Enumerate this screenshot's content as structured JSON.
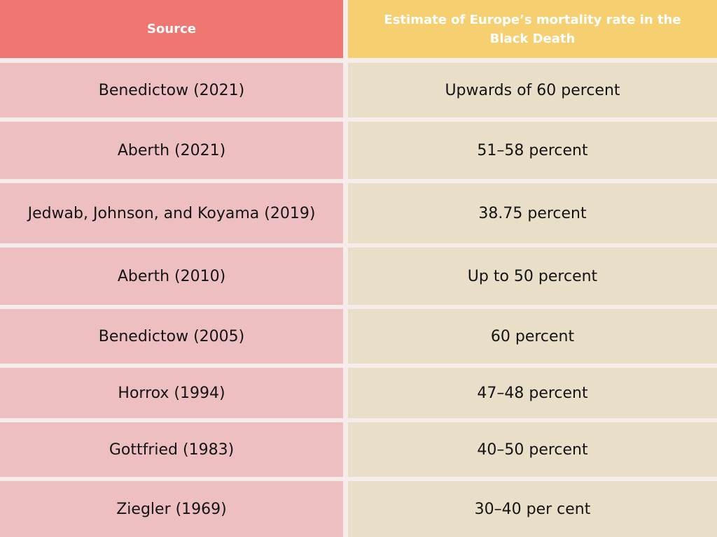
{
  "chart_data": {
    "type": "table",
    "columns": [
      "Source",
      "Estimate of Europe’s mortality rate in the Black Death"
    ],
    "rows": [
      [
        "Benedictow (2021)",
        "Upwards of 60 percent"
      ],
      [
        "Aberth (2021)",
        "51–58 percent"
      ],
      [
        "Jedwab, Johnson, and Koyama (2019)",
        "38.75 percent"
      ],
      [
        "Aberth (2010)",
        "Up to 50 percent"
      ],
      [
        "Benedictow (2005)",
        "60 percent"
      ],
      [
        "Horrox (1994)",
        "47–48 percent"
      ],
      [
        "Gottfried (1983)",
        "40–50 percent"
      ],
      [
        "Ziegler (1969)",
        "30–40 per cent"
      ]
    ]
  },
  "colors": {
    "header_source": "#f07672",
    "header_estimate": "#f6cf70",
    "row_source": "#edbfc0",
    "row_estimate": "#e9dfc8",
    "divider": "#f6ecea"
  }
}
